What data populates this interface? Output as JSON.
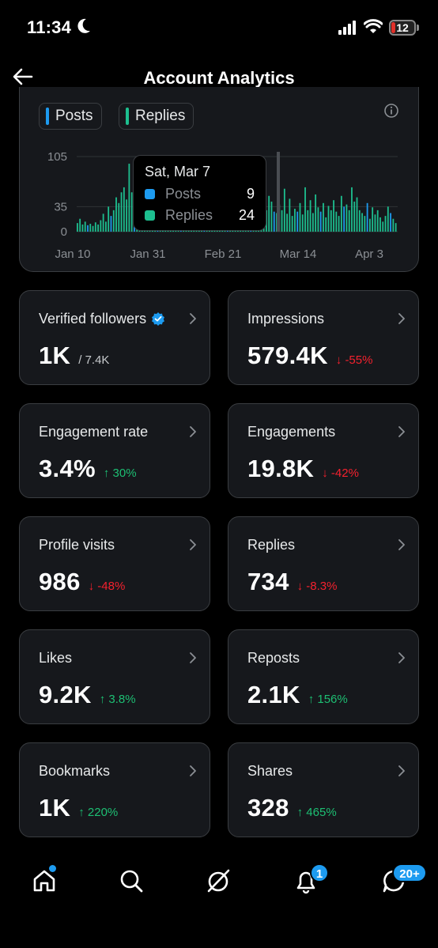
{
  "status_bar": {
    "time": "11:34",
    "battery": "12"
  },
  "header": {
    "title": "Account Analytics"
  },
  "chart_data": {
    "type": "bar",
    "legend": [
      {
        "name": "Posts",
        "color": "#1d9bf0"
      },
      {
        "name": "Replies",
        "color": "#1dbf8f"
      }
    ],
    "y_ticks": [
      "105",
      "35",
      "0"
    ],
    "ylim": [
      0,
      105
    ],
    "x_ticks": [
      "Jan 10",
      "Jan 31",
      "Feb 21",
      "Mar 14",
      "Apr 3"
    ],
    "values": [
      12,
      18,
      10,
      14,
      9,
      11,
      8,
      13,
      10,
      16,
      25,
      14,
      35,
      22,
      30,
      48,
      40,
      55,
      62,
      45,
      95,
      55,
      70,
      40,
      38,
      60,
      52,
      30,
      44,
      28,
      35,
      20,
      26,
      18,
      24,
      15,
      22,
      17,
      20,
      14,
      25,
      16,
      18,
      12,
      22,
      28,
      14,
      10,
      16,
      12,
      20,
      26,
      30,
      18,
      24,
      44,
      28,
      16,
      36,
      22,
      30,
      24,
      33,
      18,
      26,
      20,
      40,
      30,
      22,
      28,
      18,
      34,
      26,
      30,
      50,
      42,
      28,
      26,
      38,
      30,
      60,
      25,
      46,
      22,
      32,
      28,
      40,
      24,
      62,
      30,
      44,
      26,
      52,
      34,
      28,
      40,
      20,
      36,
      30,
      44,
      28,
      22,
      50,
      35,
      38,
      30,
      62,
      42,
      48,
      30,
      26,
      22,
      40,
      18,
      34,
      24,
      30,
      20,
      14,
      22,
      35,
      26,
      18,
      12
    ]
  },
  "tooltip": {
    "date": "Sat, Mar 7",
    "rows": [
      {
        "label": "Posts",
        "value": "9",
        "color": "#1d9bf0"
      },
      {
        "label": "Replies",
        "value": "24",
        "color": "#1dbf8f"
      }
    ]
  },
  "metrics": [
    {
      "label": "Verified followers",
      "value": "1K",
      "sub": "/ 7.4K",
      "delta": "",
      "dir": ""
    },
    {
      "label": "Impressions",
      "value": "579.4K",
      "sub": "",
      "delta": "-55%",
      "dir": "down"
    },
    {
      "label": "Engagement rate",
      "value": "3.4%",
      "sub": "",
      "delta": "30%",
      "dir": "up"
    },
    {
      "label": "Engagements",
      "value": "19.8K",
      "sub": "",
      "delta": "-42%",
      "dir": "down"
    },
    {
      "label": "Profile visits",
      "value": "986",
      "sub": "",
      "delta": "-48%",
      "dir": "down"
    },
    {
      "label": "Replies",
      "value": "734",
      "sub": "",
      "delta": "-8.3%",
      "dir": "down"
    },
    {
      "label": "Likes",
      "value": "9.2K",
      "sub": "",
      "delta": "3.8%",
      "dir": "up"
    },
    {
      "label": "Reposts",
      "value": "2.1K",
      "sub": "",
      "delta": "156%",
      "dir": "up"
    },
    {
      "label": "Bookmarks",
      "value": "1K",
      "sub": "",
      "delta": "220%",
      "dir": "up"
    },
    {
      "label": "Shares",
      "value": "328",
      "sub": "",
      "delta": "465%",
      "dir": "up"
    }
  ],
  "nav": {
    "items": [
      {
        "name": "home-icon"
      },
      {
        "name": "search-icon"
      },
      {
        "name": "grok-icon"
      },
      {
        "name": "notifications-icon"
      },
      {
        "name": "messages-icon"
      }
    ],
    "notifications_badge": "1",
    "messages_badge": "20+"
  }
}
